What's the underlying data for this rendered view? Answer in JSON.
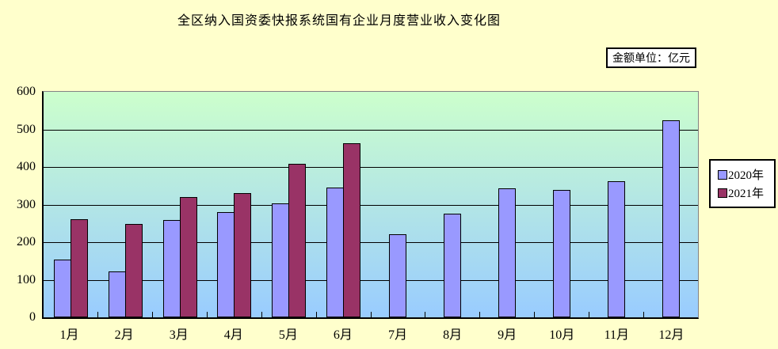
{
  "title": "全区纳入国资委快报系统国有企业月度营业收入变化图",
  "unit_label": "金额单位：亿元",
  "legend": {
    "position": "right",
    "items": [
      {
        "label": "2020年",
        "color": "#9999FF"
      },
      {
        "label": "2021年",
        "color": "#993366"
      }
    ]
  },
  "colors": {
    "page_background": "#FFFFCC",
    "plot_gradient_top": "#CCFFCC",
    "plot_gradient_bottom": "#99CCFF",
    "gridline": "#000000",
    "plot_border": "#848284"
  },
  "chart_data": {
    "type": "bar",
    "title": "全区纳入国资委快报系统国有企业月度营业收入变化图",
    "xlabel": "",
    "ylabel": "",
    "unit": "亿元",
    "categories": [
      "1月",
      "2月",
      "3月",
      "4月",
      "5月",
      "6月",
      "7月",
      "8月",
      "9月",
      "10月",
      "11月",
      "12月"
    ],
    "series": [
      {
        "name": "2020年",
        "color": "#9999FF",
        "values": [
          154,
          123,
          259,
          280,
          303,
          346,
          222,
          276,
          344,
          338,
          363,
          525
        ]
      },
      {
        "name": "2021年",
        "color": "#993366",
        "values": [
          261,
          249,
          320,
          330,
          408,
          464,
          null,
          null,
          null,
          null,
          null,
          null
        ]
      }
    ],
    "ylim": [
      0,
      600
    ],
    "ytick_step": 100,
    "yticks": [
      600,
      500,
      400,
      300,
      200,
      100,
      0
    ],
    "grid": true,
    "legend_position": "right"
  }
}
